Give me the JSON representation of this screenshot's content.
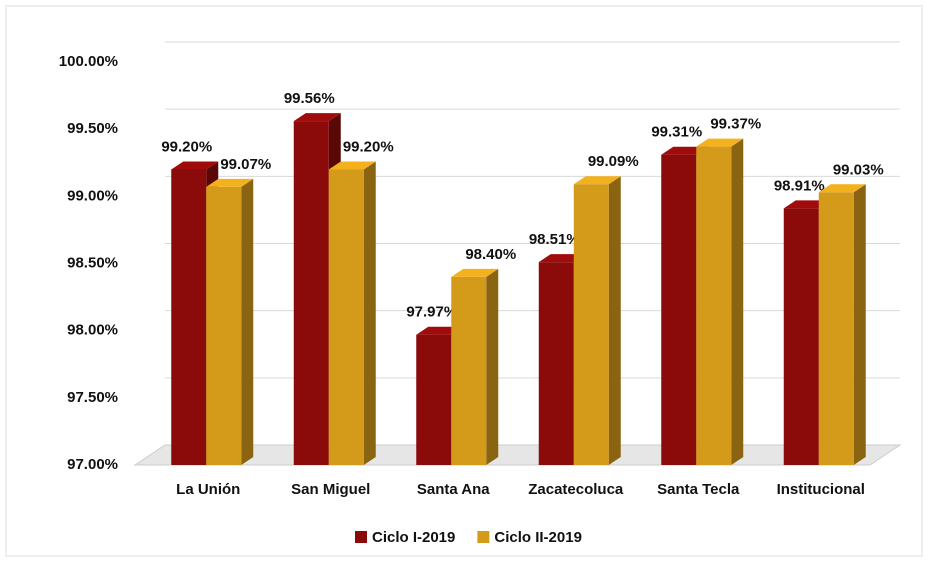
{
  "chart_data": {
    "type": "bar",
    "categories": [
      "La Unión",
      "San Miguel",
      "Santa Ana",
      "Zacatecoluca",
      "Santa Tecla",
      "Institucional"
    ],
    "series": [
      {
        "name": "Ciclo I-2019",
        "color": "#8b0a0a",
        "values": [
          99.2,
          99.56,
          97.97,
          98.51,
          99.31,
          98.91
        ],
        "value_labels": [
          "99.20%",
          "99.56%",
          "97.97%",
          "98.51%",
          "99.31%",
          "98.91%"
        ]
      },
      {
        "name": "Ciclo II-2019",
        "color": "#d49a1a",
        "values": [
          99.07,
          99.2,
          98.4,
          99.09,
          99.37,
          99.03
        ],
        "value_labels": [
          "99.07%",
          "99.20%",
          "98.40%",
          "99.09%",
          "99.37%",
          "99.03%"
        ]
      }
    ],
    "ylim": [
      97,
      100
    ],
    "yticks": [
      {
        "value": 97,
        "label": "97.00%"
      },
      {
        "value": 97.5,
        "label": "97.50%"
      },
      {
        "value": 98,
        "label": "98.00%"
      },
      {
        "value": 98.5,
        "label": "98.50%"
      },
      {
        "value": 99,
        "label": "99.00%"
      },
      {
        "value": 99.5,
        "label": "99.50%"
      },
      {
        "value": 100,
        "label": "100.00%"
      }
    ],
    "grid": true,
    "legend": "bottom"
  }
}
